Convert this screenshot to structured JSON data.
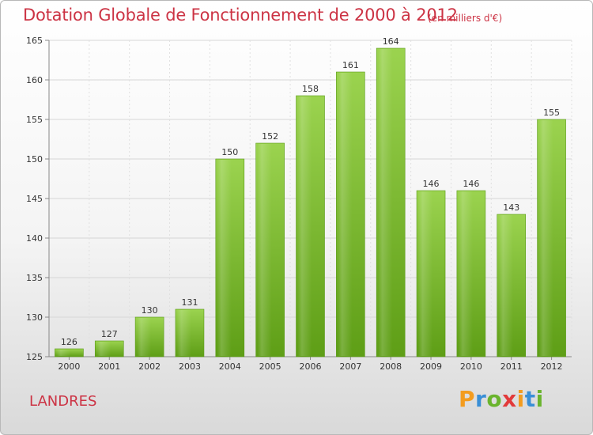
{
  "title": "Dotation Globale de Fonctionnement de 2000 à 2012",
  "subtitle": "(en milliers d'€)",
  "place": "LANDRES",
  "logo": {
    "letters": [
      "P",
      "r",
      "o",
      "x",
      "i",
      "t",
      "i"
    ],
    "colors": [
      "#f39c1f",
      "#3a8fd6",
      "#6ab42d",
      "#e23a3a",
      "#f39c1f",
      "#3a8fd6",
      "#6ab42d"
    ]
  },
  "chart_data": {
    "type": "bar",
    "title": "Dotation Globale de Fonctionnement de 2000 à 2012",
    "subtitle": "(en milliers d'€)",
    "xlabel": "",
    "ylabel": "",
    "categories": [
      "2000",
      "2001",
      "2002",
      "2003",
      "2004",
      "2005",
      "2006",
      "2007",
      "2008",
      "2009",
      "2010",
      "2011",
      "2012"
    ],
    "values": [
      126,
      127,
      130,
      131,
      150,
      152,
      158,
      161,
      164,
      146,
      146,
      143,
      155
    ],
    "ylim": [
      125,
      165
    ],
    "yticks": [
      125,
      130,
      135,
      140,
      145,
      150,
      155,
      160,
      165
    ],
    "grid": true,
    "bar_color": "#7cc13a",
    "legend": "none"
  }
}
